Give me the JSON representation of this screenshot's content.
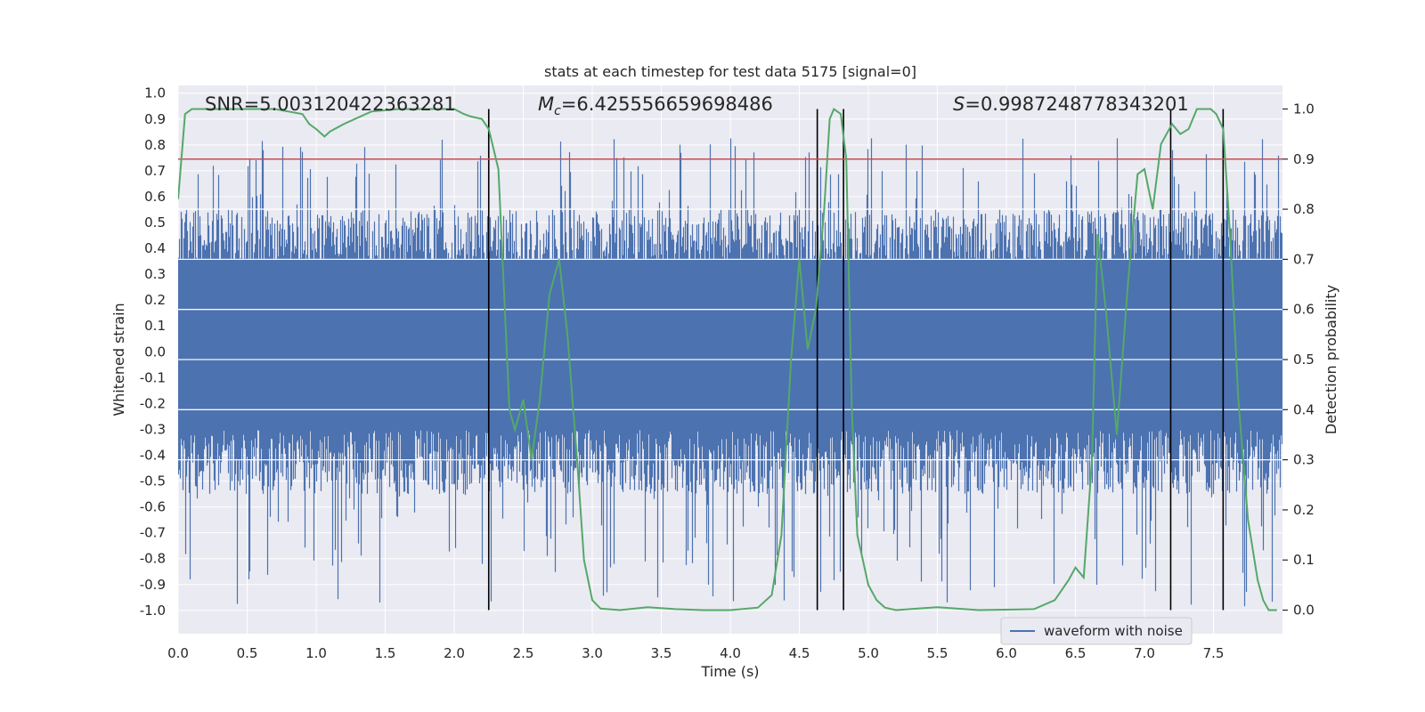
{
  "chart_data": {
    "type": "line",
    "title": "stats at each timestep for test data 5175 [signal=0]",
    "xlabel": "Time (s)",
    "ylabel_left": "Whitened strain",
    "ylabel_right": "Detection probability",
    "xlim": [
      0,
      8
    ],
    "ylim_left": [
      -1.09,
      1.03
    ],
    "ylim_right": [
      -0.047,
      1.047
    ],
    "x_ticks": [
      "0.0",
      "0.5",
      "1.0",
      "1.5",
      "2.0",
      "2.5",
      "3.0",
      "3.5",
      "4.0",
      "4.5",
      "5.0",
      "5.5",
      "6.0",
      "6.5",
      "7.0",
      "7.5"
    ],
    "x_tick_values": [
      0,
      0.5,
      1,
      1.5,
      2,
      2.5,
      3,
      3.5,
      4,
      4.5,
      5,
      5.5,
      6,
      6.5,
      7,
      7.5
    ],
    "y_ticks_left": [
      "1.0",
      "0.9",
      "0.8",
      "0.7",
      "0.6",
      "0.5",
      "0.4",
      "0.3",
      "0.2",
      "0.1",
      "0.0",
      "-0.1",
      "-0.2",
      "-0.3",
      "-0.4",
      "-0.5",
      "-0.6",
      "-0.7",
      "-0.8",
      "-0.9",
      "-1.0"
    ],
    "y_tick_values_left": [
      1,
      0.9,
      0.8,
      0.7,
      0.6,
      0.5,
      0.4,
      0.3,
      0.2,
      0.1,
      0,
      -0.1,
      -0.2,
      -0.3,
      -0.4,
      -0.5,
      -0.6,
      -0.7,
      -0.8,
      -0.9,
      -1.0
    ],
    "y_ticks_right": [
      "1.0",
      "0.9",
      "0.8",
      "0.7",
      "0.6",
      "0.5",
      "0.4",
      "0.3",
      "0.2",
      "0.1",
      "0.0"
    ],
    "y_tick_values_right": [
      1,
      0.9,
      0.8,
      0.7,
      0.6,
      0.5,
      0.4,
      0.3,
      0.2,
      0.1,
      0
    ],
    "annotations": {
      "snr": "SNR=5.003120422363281",
      "mc_symbol": "M",
      "mc_sub": "c",
      "mc_value": "=6.425556659698486",
      "s_symbol": "S",
      "s_value": "=0.9987248778343201"
    },
    "threshold": {
      "value": 0.9,
      "axis": "right",
      "color": "#c44e52"
    },
    "vertical_lines": [
      2.25,
      4.63,
      4.82,
      7.19,
      7.57
    ],
    "legend": {
      "entries": [
        "waveform with noise"
      ],
      "placement": "lower-right"
    },
    "series": [
      {
        "name": "waveform with noise",
        "axis": "left",
        "color": "#4c72b0",
        "kind": "noise-envelope",
        "core_band": [
          -0.22,
          0.36
        ],
        "typical_range": [
          -0.55,
          0.55
        ],
        "extremes_range": [
          -0.99,
          0.83
        ]
      },
      {
        "name": "detection probability",
        "axis": "right",
        "color": "#55a868",
        "x": [
          0,
          0.05,
          0.1,
          0.2,
          0.3,
          0.5,
          0.7,
          0.9,
          0.95,
          1.0,
          1.06,
          1.1,
          1.2,
          1.4,
          1.6,
          1.8,
          2.0,
          2.07,
          2.12,
          2.2,
          2.25,
          2.32,
          2.4,
          2.44,
          2.5,
          2.56,
          2.62,
          2.69,
          2.76,
          2.82,
          2.89,
          2.94,
          3.0,
          3.06,
          3.2,
          3.4,
          3.6,
          3.8,
          4.0,
          4.2,
          4.3,
          4.37,
          4.44,
          4.5,
          4.56,
          4.62,
          4.68,
          4.72,
          4.75,
          4.8,
          4.84,
          4.88,
          4.92,
          5.0,
          5.06,
          5.12,
          5.2,
          5.5,
          5.8,
          6.2,
          6.35,
          6.45,
          6.5,
          6.56,
          6.62,
          6.66,
          6.72,
          6.8,
          6.88,
          6.95,
          7.0,
          7.06,
          7.12,
          7.2,
          7.26,
          7.32,
          7.38,
          7.44,
          7.48,
          7.52,
          7.57,
          7.62,
          7.68,
          7.75,
          7.82,
          7.86,
          7.9,
          7.96
        ],
        "values": [
          0.82,
          0.99,
          1.0,
          1.0,
          1.0,
          1.0,
          1.0,
          0.99,
          0.97,
          0.96,
          0.945,
          0.955,
          0.97,
          0.995,
          1.0,
          1.0,
          1.0,
          0.99,
          0.985,
          0.98,
          0.96,
          0.88,
          0.4,
          0.36,
          0.42,
          0.3,
          0.42,
          0.63,
          0.7,
          0.55,
          0.3,
          0.1,
          0.02,
          0.003,
          0.0,
          0.006,
          0.002,
          0.0,
          0.0,
          0.005,
          0.03,
          0.15,
          0.5,
          0.7,
          0.52,
          0.6,
          0.8,
          0.98,
          1.0,
          0.99,
          0.9,
          0.4,
          0.15,
          0.05,
          0.02,
          0.005,
          0.0,
          0.006,
          0.0,
          0.002,
          0.02,
          0.06,
          0.085,
          0.065,
          0.3,
          0.75,
          0.6,
          0.35,
          0.65,
          0.87,
          0.88,
          0.8,
          0.93,
          0.97,
          0.95,
          0.96,
          1.0,
          1.0,
          1.0,
          0.99,
          0.96,
          0.75,
          0.42,
          0.18,
          0.06,
          0.02,
          0.0,
          0.0
        ]
      }
    ]
  }
}
